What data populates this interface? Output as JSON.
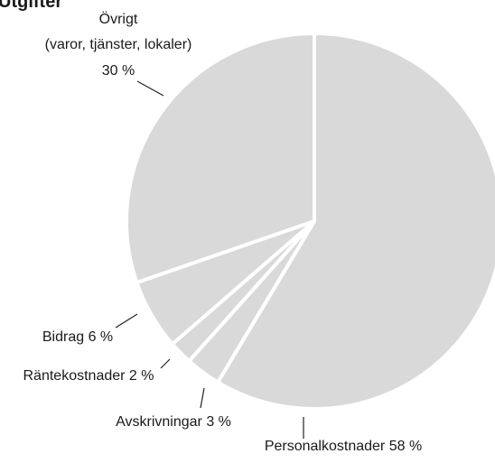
{
  "chart_data": {
    "type": "pie",
    "title": "Utgifter",
    "categories": [
      "Personalkostnader",
      "Avskrivningar",
      "Räntekostnader",
      "Bidrag",
      "Övrigt"
    ],
    "values": [
      58,
      3,
      2,
      6,
      30
    ],
    "value_labels": [
      "58 %",
      "3 %",
      "2 %",
      "6 %",
      "30 %"
    ],
    "annotations": [
      "(varor, tjänster, lokaler)"
    ],
    "color": "#d9d9d9"
  }
}
